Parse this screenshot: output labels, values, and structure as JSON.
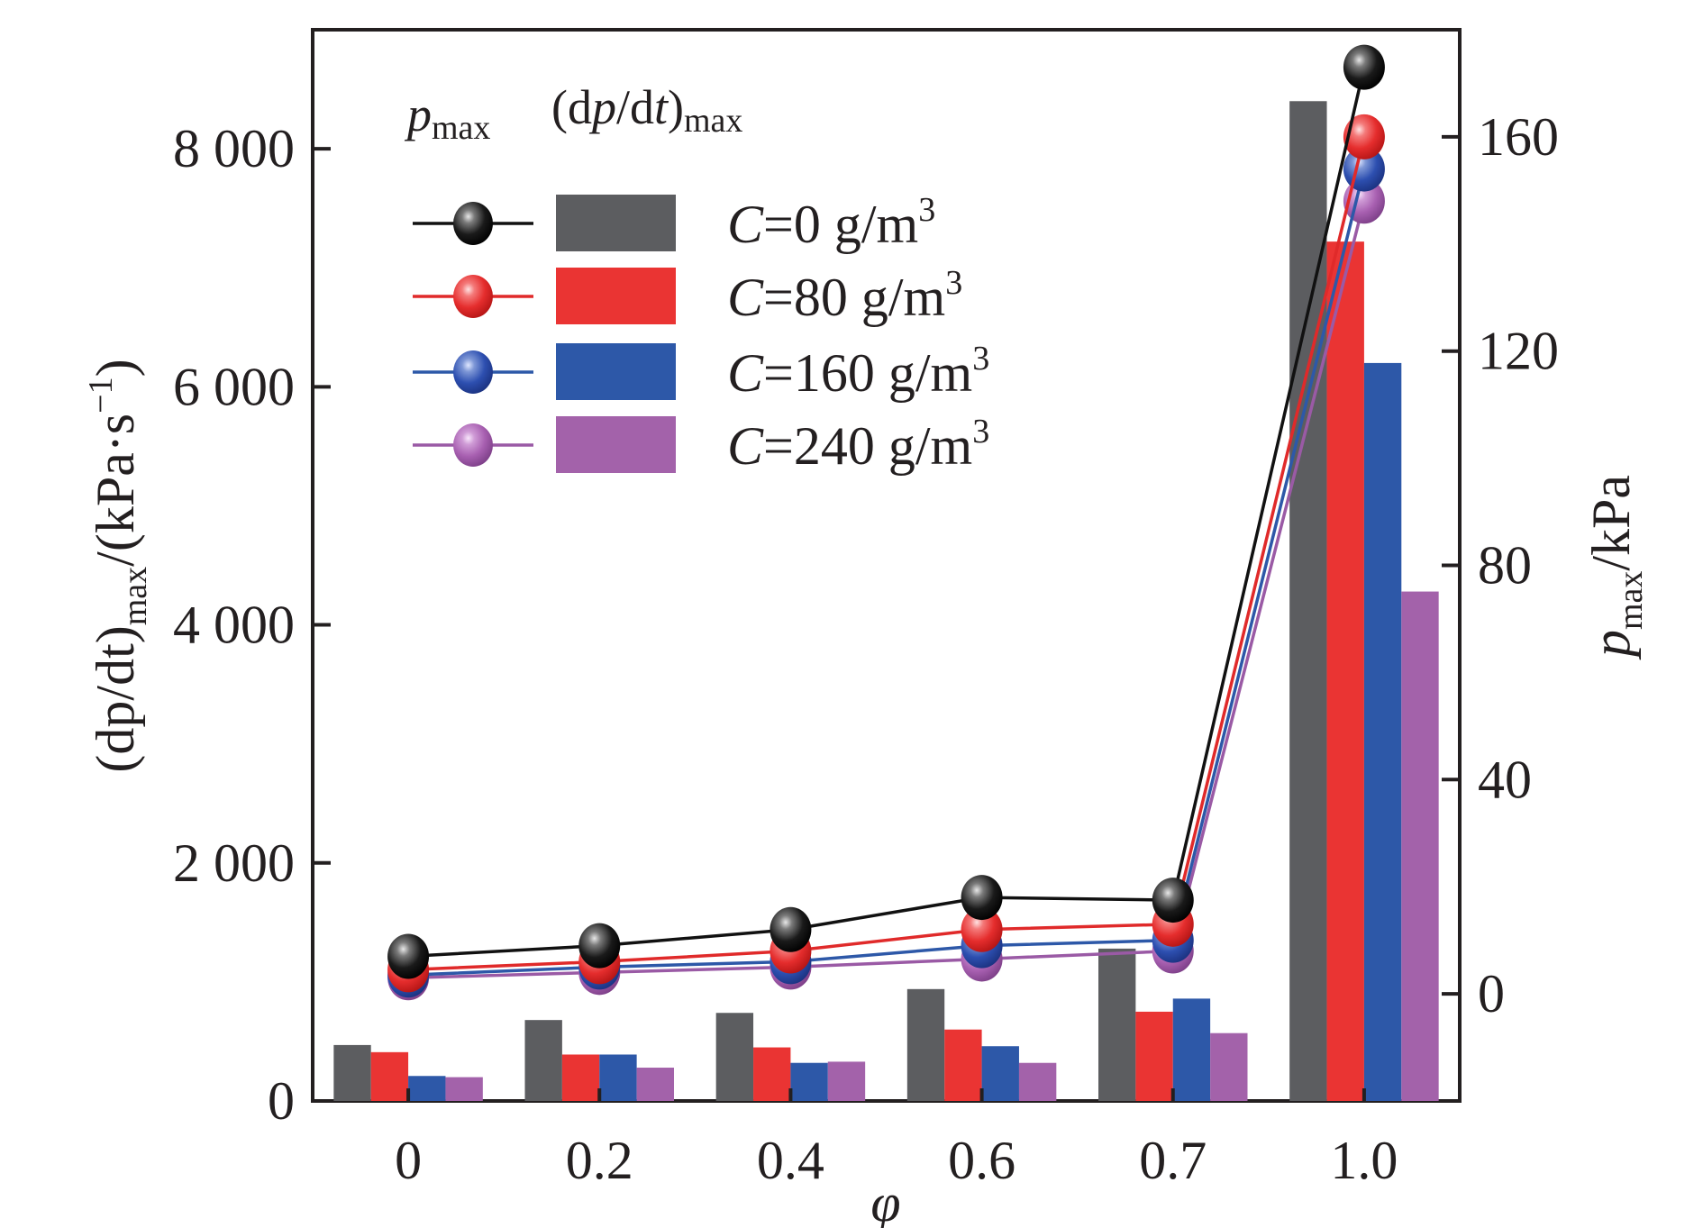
{
  "chart_data": {
    "type": "bar+line",
    "categories": [
      "0",
      "0.2",
      "0.4",
      "0.6",
      "0.7",
      "1.0"
    ],
    "x_label": "φ",
    "y_left": {
      "label_main": "(dp/dt)",
      "label_sub": "max",
      "label_unit": "/(kPa·s",
      "label_sup": "−1",
      "label_close": ")",
      "range": [
        0,
        9000
      ],
      "ticks": [
        0,
        2000,
        4000,
        6000,
        8000
      ],
      "tick_labels": [
        "0",
        "2 000",
        "4 000",
        "6 000",
        "8 000"
      ]
    },
    "y_right": {
      "label_main": "p",
      "label_sub": "max",
      "label_unit": "/kPa",
      "range": [
        -20,
        180
      ],
      "ticks": [
        0,
        40,
        80,
        120,
        160
      ],
      "tick_labels": [
        "0",
        "40",
        "80",
        "120",
        "160"
      ]
    },
    "legend": {
      "head_line": "p",
      "head_line_sub": "max",
      "head_bar": "(dp/dt)",
      "head_bar_sub": "max",
      "placement": "top-left"
    },
    "series": [
      {
        "name_var": "C",
        "name_rest": "=0 g/m",
        "name_sup": "3",
        "color": "#5c5d60",
        "line_color": "#111111",
        "bar_values": [
          470,
          680,
          740,
          940,
          1280,
          8400
        ],
        "line_values": [
          7,
          9,
          12,
          18,
          17.5,
          173
        ]
      },
      {
        "name_var": "C",
        "name_rest": "=80 g/m",
        "name_sup": "3",
        "color": "#ea3433",
        "line_color": "#e02a2a",
        "bar_values": [
          410,
          390,
          450,
          600,
          750,
          7220
        ],
        "line_values": [
          4.5,
          6,
          8,
          12,
          13,
          160
        ]
      },
      {
        "name_var": "C",
        "name_rest": "=160 g/m",
        "name_sup": "3",
        "color": "#2d58a8",
        "line_color": "#2d58a8",
        "bar_values": [
          210,
          390,
          320,
          460,
          860,
          6200
        ],
        "line_values": [
          3.5,
          5,
          6,
          9,
          10,
          154
        ]
      },
      {
        "name_var": "C",
        "name_rest": "=240 g/m",
        "name_sup": "3",
        "color": "#a362aa",
        "line_color": "#9a5aa5",
        "bar_values": [
          200,
          280,
          330,
          320,
          570,
          4280
        ],
        "line_values": [
          3,
          4,
          5,
          6.5,
          8,
          148
        ]
      }
    ],
    "grid": false
  }
}
